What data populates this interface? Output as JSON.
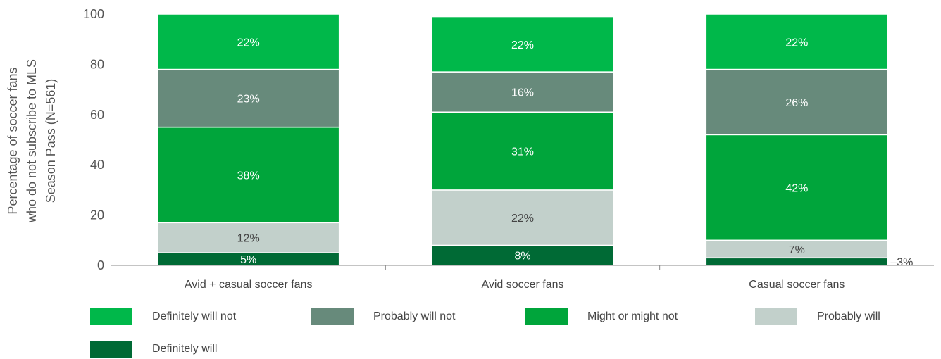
{
  "chart_data": {
    "type": "bar",
    "stacked": true,
    "ylabel": [
      "Percentage of soccer fans",
      "who do not subscribe to MLS",
      "Season Pass (N=561)"
    ],
    "xlabel": "",
    "ylim": [
      0,
      100
    ],
    "yticks": [
      "0",
      "20",
      "40",
      "60",
      "80",
      "100"
    ],
    "categories": [
      "Avid + casual soccer fans",
      "Avid soccer fans",
      "Casual soccer fans"
    ],
    "series": [
      {
        "name": "Definitely will",
        "values": [
          5,
          8,
          3
        ],
        "labels": [
          "5%",
          "8%",
          "3%"
        ],
        "color": "#006a35"
      },
      {
        "name": "Probably will",
        "values": [
          12,
          22,
          7
        ],
        "labels": [
          "12%",
          "22%",
          "7%"
        ],
        "color": "#c2d0cb"
      },
      {
        "name": "Might or might not",
        "values": [
          38,
          31,
          42
        ],
        "labels": [
          "38%",
          "31%",
          "42%"
        ],
        "color": "#00a53b"
      },
      {
        "name": "Probably will not",
        "values": [
          23,
          16,
          26
        ],
        "labels": [
          "23%",
          "16%",
          "26%"
        ],
        "color": "#678a7b"
      },
      {
        "name": "Definitely will not",
        "values": [
          22,
          22,
          22
        ],
        "labels": [
          "22%",
          "22%",
          "22%"
        ],
        "color": "#00b84a"
      }
    ],
    "legend": {
      "placement": "bottom",
      "order": [
        "Definitely will not",
        "Probably will not",
        "Might or might not",
        "Probably will",
        "Definitely will"
      ]
    },
    "grid": false
  }
}
